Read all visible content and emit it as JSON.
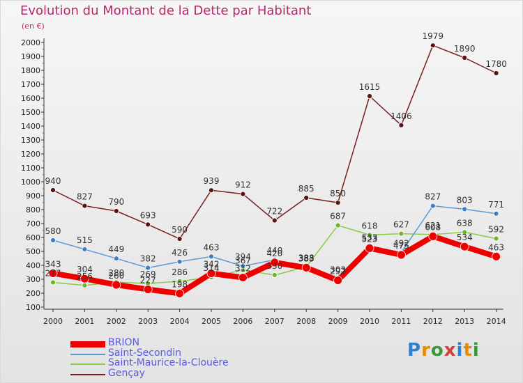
{
  "title": "Evolution du Montant de la Dette par Habitant",
  "unit": "(en €)",
  "logo": "Proxiti",
  "chart_data": {
    "type": "line",
    "title": "Evolution du Montant de la Dette par Habitant",
    "ylabel": "(en €)",
    "ylim": [
      100,
      2000
    ],
    "yticks": [
      100,
      200,
      300,
      400,
      500,
      600,
      700,
      800,
      900,
      1000,
      1100,
      1200,
      1300,
      1400,
      1500,
      1600,
      1700,
      1800,
      1900,
      2000
    ],
    "x": [
      "2000",
      "2001",
      "2002",
      "2003",
      "2004",
      "2005",
      "2006",
      "2007",
      "2008",
      "2009",
      "2010",
      "2011",
      "2012",
      "2013",
      "2014"
    ],
    "grid": false,
    "legend": "bottom-left",
    "series": [
      {
        "name": "Gençay",
        "color": "#7a1e1e",
        "values": [
          940,
          827,
          790,
          693,
          590,
          939,
          912,
          722,
          885,
          850,
          1615,
          1406,
          1979,
          1890,
          1780
        ],
        "labels": [
          "940",
          "827",
          "790",
          "693",
          "590",
          "939",
          "912",
          "722",
          "885",
          "850",
          "1615",
          "1406",
          "1979",
          "1890",
          "1780"
        ]
      },
      {
        "name": "Saint-Maurice-la-Clouère",
        "color": "#88cc44",
        "values": [
          277,
          256,
          280,
          269,
          286,
          314,
          367,
          330,
          388,
          687,
          618,
          627,
          621,
          638,
          592
        ],
        "labels": [
          "277",
          "256",
          "280",
          "269",
          "286",
          "314",
          "367",
          "330",
          "388",
          "687",
          "618",
          "627",
          "621",
          "638",
          "592"
        ]
      },
      {
        "name": "Saint-Secondin",
        "color": "#5b9bd5",
        "values": [
          580,
          515,
          449,
          382,
          426,
          463,
          394,
          440,
          383,
          303,
          533,
          492,
          827,
          803,
          771
        ],
        "labels": [
          "580",
          "515",
          "449",
          "382",
          "426",
          "463",
          "394",
          "440",
          "383",
          "303",
          "533",
          "492",
          "827",
          "803",
          "771"
        ]
      },
      {
        "name": "BRION",
        "color": "#ee0000",
        "values": [
          343,
          304,
          260,
          227,
          198,
          342,
          312,
          420,
          383,
          292,
          523,
          475,
          608,
          534,
          463
        ],
        "labels": [
          "343",
          "304",
          "260",
          "227",
          "198",
          "342",
          "312",
          "420",
          "383",
          "292",
          "523",
          "475",
          "608",
          "534",
          "463"
        ]
      }
    ]
  }
}
